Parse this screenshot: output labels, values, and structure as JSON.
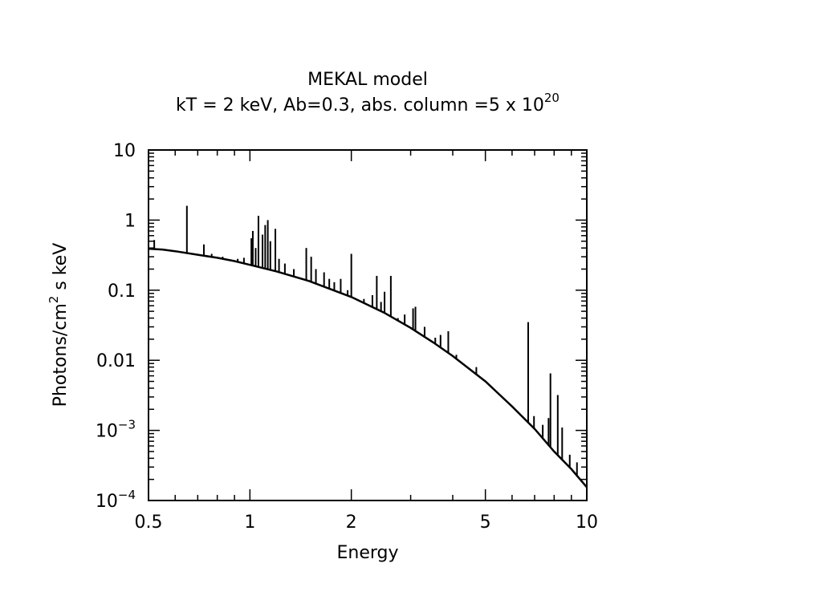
{
  "chart_data": {
    "type": "line",
    "title": "MEKAL model",
    "subtitle_prefix": "kT = 2 keV, Ab=0.3, abs. column =5 x 10",
    "subtitle_exponent": "20",
    "xlabel": "Energy",
    "ylabel_prefix": "Photons/cm",
    "ylabel_exponent": "2",
    "ylabel_suffix": " s keV",
    "xscale": "log",
    "yscale": "log",
    "xlim": [
      0.5,
      10
    ],
    "ylim": [
      0.0001,
      10
    ],
    "grid": false,
    "legend": "none",
    "line_color": "#000000",
    "x_ticks": [
      {
        "value": 0.5,
        "label": "0.5"
      },
      {
        "value": 1,
        "label": "1"
      },
      {
        "value": 2,
        "label": "2"
      },
      {
        "value": 5,
        "label": "5"
      },
      {
        "value": 10,
        "label": "10"
      }
    ],
    "y_ticks": [
      {
        "value": 10,
        "label": "10",
        "exp": ""
      },
      {
        "value": 1,
        "label": "1",
        "exp": ""
      },
      {
        "value": 0.1,
        "label": "0.1",
        "exp": ""
      },
      {
        "value": 0.01,
        "label": "0.01",
        "exp": ""
      },
      {
        "value": 0.001,
        "label": "10",
        "exp": "−3"
      },
      {
        "value": 0.0001,
        "label": "10",
        "exp": "−4"
      }
    ],
    "series": [
      {
        "continuum": [
          [
            0.5,
            0.39
          ],
          [
            0.55,
            0.38
          ],
          [
            0.6,
            0.36
          ],
          [
            0.7,
            0.32
          ],
          [
            0.8,
            0.29
          ],
          [
            0.9,
            0.26
          ],
          [
            1.0,
            0.23
          ],
          [
            1.2,
            0.185
          ],
          [
            1.5,
            0.135
          ],
          [
            2.0,
            0.08
          ],
          [
            2.5,
            0.048
          ],
          [
            3.0,
            0.029
          ],
          [
            3.5,
            0.018
          ],
          [
            4.0,
            0.0115
          ],
          [
            5.0,
            0.005
          ],
          [
            6.0,
            0.0022
          ],
          [
            7.0,
            0.00105
          ],
          [
            8.0,
            0.0005
          ],
          [
            9.0,
            0.00028
          ],
          [
            10.0,
            0.000155
          ]
        ],
        "lines": [
          [
            0.52,
            0.52
          ],
          [
            0.65,
            1.6
          ],
          [
            0.73,
            0.45
          ],
          [
            0.77,
            0.33
          ],
          [
            0.83,
            0.3
          ],
          [
            0.92,
            0.28
          ],
          [
            0.96,
            0.29
          ],
          [
            1.01,
            0.55
          ],
          [
            1.02,
            0.7
          ],
          [
            1.04,
            0.4
          ],
          [
            1.06,
            1.15
          ],
          [
            1.09,
            0.62
          ],
          [
            1.11,
            0.85
          ],
          [
            1.13,
            1.0
          ],
          [
            1.15,
            0.5
          ],
          [
            1.19,
            0.75
          ],
          [
            1.22,
            0.28
          ],
          [
            1.27,
            0.24
          ],
          [
            1.35,
            0.2
          ],
          [
            1.47,
            0.4
          ],
          [
            1.52,
            0.3
          ],
          [
            1.57,
            0.2
          ],
          [
            1.66,
            0.18
          ],
          [
            1.72,
            0.145
          ],
          [
            1.78,
            0.13
          ],
          [
            1.86,
            0.145
          ],
          [
            1.95,
            0.1
          ],
          [
            2.0,
            0.33
          ],
          [
            2.18,
            0.075
          ],
          [
            2.31,
            0.085
          ],
          [
            2.38,
            0.16
          ],
          [
            2.45,
            0.068
          ],
          [
            2.51,
            0.095
          ],
          [
            2.62,
            0.16
          ],
          [
            2.75,
            0.04
          ],
          [
            2.88,
            0.045
          ],
          [
            3.05,
            0.055
          ],
          [
            3.1,
            0.058
          ],
          [
            3.3,
            0.03
          ],
          [
            3.55,
            0.021
          ],
          [
            3.68,
            0.023
          ],
          [
            3.88,
            0.026
          ],
          [
            4.1,
            0.012
          ],
          [
            4.7,
            0.008
          ],
          [
            6.7,
            0.035
          ],
          [
            6.97,
            0.0016
          ],
          [
            7.4,
            0.0012
          ],
          [
            7.7,
            0.0015
          ],
          [
            7.8,
            0.0065
          ],
          [
            8.2,
            0.0032
          ],
          [
            8.45,
            0.0011
          ],
          [
            8.9,
            0.00045
          ],
          [
            9.35,
            0.00035
          ]
        ]
      }
    ]
  }
}
